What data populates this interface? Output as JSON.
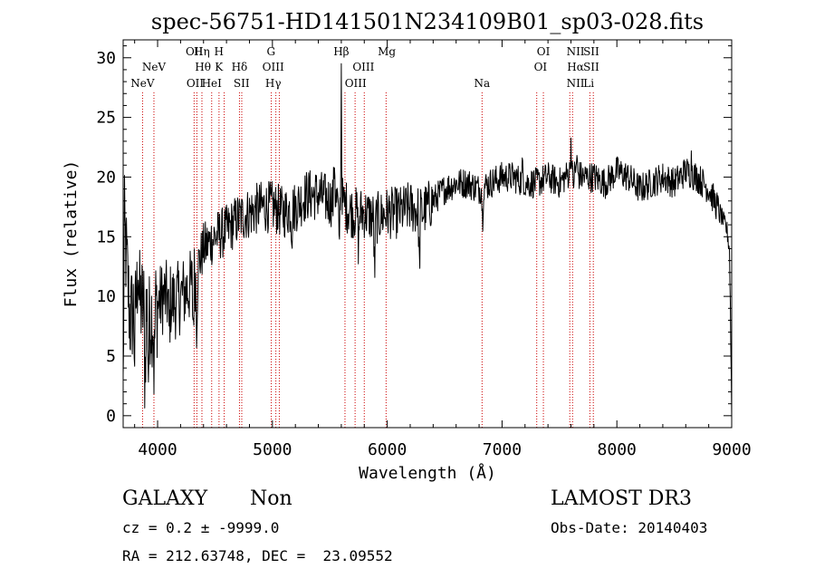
{
  "chart_data": {
    "type": "line",
    "title": "spec-56751-HD141501N234109B01_sp03-028.fits",
    "xlabel": "Wavelength (Å)",
    "ylabel": "Flux (relative)",
    "xlim": [
      3700,
      9000
    ],
    "ylim": [
      -1,
      31.5
    ],
    "x_ticks": [
      4000,
      5000,
      6000,
      7000,
      8000,
      9000
    ],
    "x_tick_labels": [
      "4000",
      "5000",
      "6000",
      "7000",
      "8000",
      "9000"
    ],
    "y_ticks": [
      0,
      5,
      10,
      15,
      20,
      25,
      30
    ],
    "y_tick_labels": [
      "0",
      "5",
      "10",
      "15",
      "20",
      "25",
      "30"
    ],
    "grid": false,
    "series": [
      {
        "name": "flux",
        "anchors": [
          [
            3700,
            2
          ],
          [
            3710,
            16
          ],
          [
            3760,
            8
          ],
          [
            3820,
            10
          ],
          [
            3880,
            9
          ],
          [
            3950,
            8.5
          ],
          [
            4050,
            10
          ],
          [
            4150,
            9.5
          ],
          [
            4250,
            10.5
          ],
          [
            4310,
            11
          ],
          [
            4330,
            12
          ],
          [
            4400,
            14
          ],
          [
            4500,
            15
          ],
          [
            4600,
            15.5
          ],
          [
            4700,
            16.5
          ],
          [
            4800,
            17
          ],
          [
            4900,
            17.5
          ],
          [
            5000,
            17.5
          ],
          [
            5100,
            17
          ],
          [
            5200,
            17.5
          ],
          [
            5300,
            18.5
          ],
          [
            5400,
            18.5
          ],
          [
            5500,
            18
          ],
          [
            5600,
            18
          ],
          [
            5700,
            17
          ],
          [
            5800,
            17
          ],
          [
            5900,
            16.5
          ],
          [
            6000,
            17
          ],
          [
            6100,
            17
          ],
          [
            6200,
            17.5
          ],
          [
            6300,
            17
          ],
          [
            6400,
            18
          ],
          [
            6500,
            19
          ],
          [
            6600,
            19.5
          ],
          [
            6700,
            19.5
          ],
          [
            6800,
            19
          ],
          [
            6900,
            19.5
          ],
          [
            7000,
            20
          ],
          [
            7100,
            20
          ],
          [
            7200,
            19.5
          ],
          [
            7300,
            19.5
          ],
          [
            7400,
            20
          ],
          [
            7500,
            19.5
          ],
          [
            7600,
            20.5
          ],
          [
            7700,
            20
          ],
          [
            7800,
            20
          ],
          [
            7900,
            19.5
          ],
          [
            8000,
            20.5
          ],
          [
            8100,
            20
          ],
          [
            8200,
            19
          ],
          [
            8300,
            19.5
          ],
          [
            8400,
            20
          ],
          [
            8500,
            19.5
          ],
          [
            8600,
            20.5
          ],
          [
            8700,
            20
          ],
          [
            8800,
            19
          ],
          [
            8900,
            17
          ],
          [
            8960,
            15.5
          ],
          [
            8980,
            14
          ],
          [
            8990,
            8
          ],
          [
            9000,
            0
          ]
        ],
        "features": [
          [
            3800,
            -4
          ],
          [
            3830,
            4
          ],
          [
            3890,
            -6
          ],
          [
            3920,
            -5
          ],
          [
            3970,
            -5.5
          ],
          [
            4101,
            -3
          ],
          [
            4310,
            -3.5
          ],
          [
            4340,
            -4
          ],
          [
            5170,
            -2
          ],
          [
            5540,
            4
          ],
          [
            5580,
            -4
          ],
          [
            5600,
            5
          ],
          [
            5750,
            -3
          ],
          [
            5890,
            -5
          ],
          [
            6280,
            -5
          ],
          [
            6830,
            -3
          ],
          [
            7180,
            1.5
          ],
          [
            7600,
            2.5
          ],
          [
            7620,
            -1
          ],
          [
            7650,
            1.5
          ],
          [
            8650,
            1.5
          ]
        ]
      }
    ],
    "line_markers": [
      {
        "wavelength": 3869,
        "row": 2,
        "label": "NeV"
      },
      {
        "wavelength": 3968,
        "row": 1,
        "label": "NeV"
      },
      {
        "wavelength": 4320,
        "row": 0,
        "label": "OII"
      },
      {
        "wavelength": 4327,
        "row": 2,
        "label": "OII"
      },
      {
        "wavelength": 4385,
        "row": 0,
        "label": "Hη"
      },
      {
        "wavelength": 4395,
        "row": 1,
        "label": "Hθ"
      },
      {
        "wavelength": 4471,
        "row": 2,
        "label": "HeI"
      },
      {
        "wavelength": 4534,
        "row": 0,
        "label": "H"
      },
      {
        "wavelength": 4534,
        "row": 1,
        "label": "K"
      },
      {
        "wavelength": 4713,
        "row": 1,
        "label": "Hδ"
      },
      {
        "wavelength": 4731,
        "row": 2,
        "label": "SII"
      },
      {
        "wavelength": 4988,
        "row": 0,
        "label": "G"
      },
      {
        "wavelength": 5007,
        "row": 1,
        "label": "OIII"
      },
      {
        "wavelength": 5007,
        "row": 2,
        "label": "Hγ"
      },
      {
        "wavelength": 5600,
        "row": 0,
        "label": "Hβ"
      },
      {
        "wavelength": 5725,
        "row": 2,
        "label": "OIII"
      },
      {
        "wavelength": 5793,
        "row": 1,
        "label": "OIII"
      },
      {
        "wavelength": 5996,
        "row": 0,
        "label": "Mg"
      },
      {
        "wavelength": 6826,
        "row": 2,
        "label": "Na"
      },
      {
        "wavelength": 7360,
        "row": 0,
        "label": "OI"
      },
      {
        "wavelength": 7335,
        "row": 1,
        "label": "OI"
      },
      {
        "wavelength": 7640,
        "row": 0,
        "label": "NII"
      },
      {
        "wavelength": 7640,
        "row": 1,
        "label": "Hα"
      },
      {
        "wavelength": 7640,
        "row": 2,
        "label": "NII"
      },
      {
        "wavelength": 7777,
        "row": 0,
        "label": "SII"
      },
      {
        "wavelength": 7777,
        "row": 1,
        "label": "SII"
      },
      {
        "wavelength": 7755,
        "row": 2,
        "label": "Li"
      }
    ],
    "marker_lines": [
      3869,
      3968,
      4318,
      4342,
      4386,
      4471,
      4535,
      4580,
      4713,
      4733,
      4990,
      5030,
      5060,
      5632,
      5720,
      5800,
      5990,
      6826,
      7302,
      7360,
      7590,
      7614,
      7765,
      7795
    ],
    "marker_color": "#cc0000"
  },
  "info": {
    "object_class": "GALAXY",
    "subclass": "Non",
    "survey": "LAMOST DR3",
    "cz_line": "cz = 0.2 ± -9999.0",
    "obs_date_line": "Obs-Date: 20140403",
    "coords_line": "RA = 212.63748, DEC =  23.09552"
  }
}
